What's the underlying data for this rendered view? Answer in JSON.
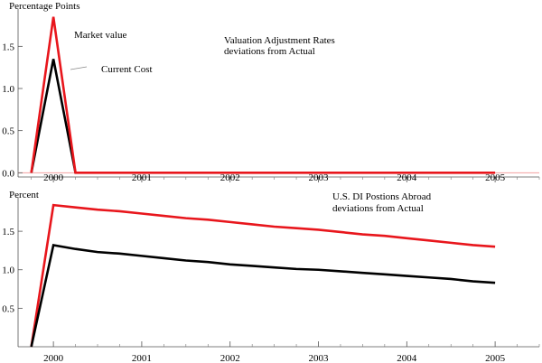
{
  "chart_data": [
    {
      "type": "line",
      "title": "",
      "ylabel": "Percentage Points",
      "xlabel": "",
      "xlim": [
        1999.6,
        2005.5
      ],
      "ylim": [
        -0.05,
        1.9
      ],
      "xticks": [
        2000,
        2001,
        2002,
        2003,
        2004,
        2005
      ],
      "yticks": [
        0.0,
        0.5,
        1.0,
        1.5
      ],
      "ytick_labels": [
        "0.0",
        "0.5",
        "1.0",
        "1.5"
      ],
      "zero_line_color": "#f2a0a0",
      "annotations": [
        "Market value",
        "Current Cost",
        "Valuation Adjustment Rates",
        "deviations from Actual"
      ],
      "series": [
        {
          "name": "Market value",
          "color": "#e8161c",
          "x": [
            1999.75,
            2000.0,
            2000.25,
            2000.5,
            2000.75,
            2001.0,
            2001.25,
            2001.5,
            2001.75,
            2002.0,
            2002.25,
            2002.5,
            2002.75,
            2003.0,
            2003.25,
            2003.5,
            2003.75,
            2004.0,
            2004.25,
            2004.5,
            2004.75,
            2005.0
          ],
          "y": [
            0.0,
            1.85,
            0.0,
            0.0,
            0.0,
            0.0,
            0.0,
            0.0,
            0.0,
            0.0,
            0.0,
            0.0,
            0.0,
            0.0,
            0.0,
            0.0,
            0.0,
            0.0,
            0.0,
            0.0,
            0.0,
            0.0
          ]
        },
        {
          "name": "Current Cost",
          "color": "#000000",
          "x": [
            1999.75,
            2000.0,
            2000.25
          ],
          "y": [
            0.0,
            1.35,
            0.0
          ]
        }
      ]
    },
    {
      "type": "line",
      "title": "",
      "ylabel": "Percent",
      "xlabel": "",
      "xlim": [
        1999.6,
        2005.5
      ],
      "ylim": [
        0.0,
        1.9
      ],
      "xticks": [
        2000,
        2001,
        2002,
        2003,
        2004,
        2005
      ],
      "yticks": [
        0.5,
        1.0,
        1.5
      ],
      "ytick_labels": [
        "0.5",
        "1.0",
        "1.5"
      ],
      "annotations": [
        "U.S. DI Postions Abroad",
        "deviations from Actual"
      ],
      "series": [
        {
          "name": "Market value",
          "color": "#e8161c",
          "x": [
            1999.75,
            2000.0,
            2000.25,
            2000.5,
            2000.75,
            2001.0,
            2001.25,
            2001.5,
            2001.75,
            2002.0,
            2002.25,
            2002.5,
            2002.75,
            2003.0,
            2003.25,
            2003.5,
            2003.75,
            2004.0,
            2004.25,
            2004.5,
            2004.75,
            2005.0
          ],
          "y": [
            0.0,
            1.84,
            1.81,
            1.78,
            1.76,
            1.73,
            1.7,
            1.67,
            1.65,
            1.62,
            1.59,
            1.56,
            1.54,
            1.52,
            1.49,
            1.46,
            1.44,
            1.41,
            1.38,
            1.35,
            1.32,
            1.3
          ]
        },
        {
          "name": "Current Cost",
          "color": "#000000",
          "x": [
            1999.75,
            2000.0,
            2000.25,
            2000.5,
            2000.75,
            2001.0,
            2001.25,
            2001.5,
            2001.75,
            2002.0,
            2002.25,
            2002.5,
            2002.75,
            2003.0,
            2003.25,
            2003.5,
            2003.75,
            2004.0,
            2004.25,
            2004.5,
            2004.75,
            2005.0
          ],
          "y": [
            0.0,
            1.32,
            1.27,
            1.23,
            1.21,
            1.18,
            1.15,
            1.12,
            1.1,
            1.07,
            1.05,
            1.03,
            1.01,
            1.0,
            0.98,
            0.96,
            0.94,
            0.92,
            0.9,
            0.88,
            0.85,
            0.83
          ]
        }
      ]
    }
  ]
}
